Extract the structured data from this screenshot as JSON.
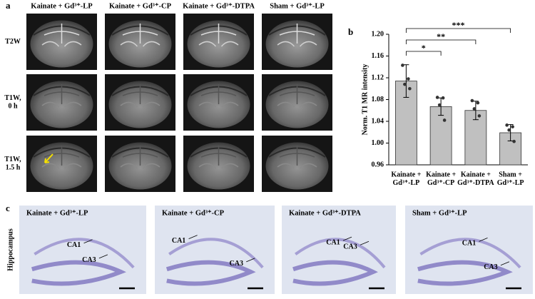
{
  "panel_a": {
    "label": "a",
    "columns": [
      "Kainate + Gd³⁺-LP",
      "Kainate + Gd³⁺-CP",
      "Kainate + Gd³⁺-DTPA",
      "Sham + Gd³⁺-LP"
    ],
    "rows": [
      "T2W",
      "T1W,\n0 h",
      "T1W,\n1.5 h"
    ]
  },
  "chart_data": {
    "type": "bar",
    "panel_label": "b",
    "ylabel": "Norm. T1 MR intensity",
    "categories": [
      "Kainate +\nGd³⁺-LP",
      "Kainate +\nGd³⁺-CP",
      "Kainate +\nGd³⁺-DTPA",
      "Sham +\nGd³⁺-LP"
    ],
    "values": [
      1.114,
      1.067,
      1.06,
      1.019
    ],
    "errors": [
      0.03,
      0.016,
      0.017,
      0.015
    ],
    "points": [
      [
        1.143,
        1.118,
        1.108,
        1.1
      ],
      [
        1.084,
        1.083,
        1.07,
        1.042
      ],
      [
        1.078,
        1.074,
        1.063,
        1.05
      ],
      [
        1.033,
        1.03,
        1.024,
        1.003
      ]
    ],
    "color": "#c0c0c0",
    "ylim": [
      0.96,
      1.2
    ],
    "yticks": [
      0.96,
      {
        "value": 1,
        "label": "1.00"
      },
      1.04,
      1.08,
      1.12,
      1.16,
      {
        "value": 1.2,
        "label": "1.20"
      }
    ],
    "annotations": [
      "*",
      "**",
      "***"
    ]
  },
  "panel_c": {
    "label": "c",
    "row_label": "Hippocampus",
    "images": [
      {
        "title": "Kainate + Gd³⁺-LP",
        "labels": [
          "CA1",
          "CA3"
        ]
      },
      {
        "title": "Kainate + Gd³⁺-CP",
        "labels": [
          "CA1",
          "CA3"
        ]
      },
      {
        "title": "Kainate + Gd³⁺-DTPA",
        "labels": [
          "CA1",
          "CA3"
        ]
      },
      {
        "title": "Sham + Gd³⁺-LP",
        "labels": [
          "CA1",
          "CA3"
        ]
      }
    ]
  }
}
